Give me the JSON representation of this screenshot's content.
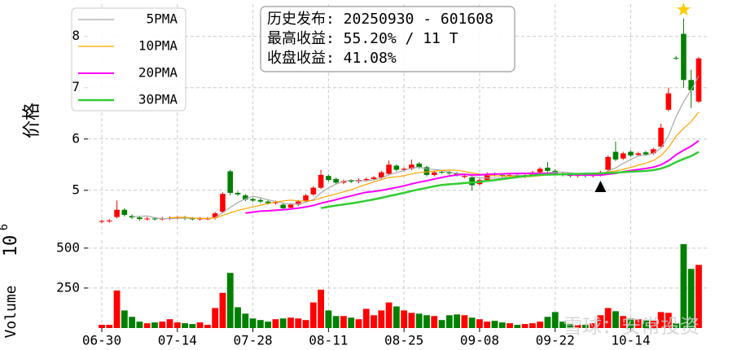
{
  "chart_data": {
    "type": "candlestick",
    "ylabel": "价格",
    "volume_label": "Volume",
    "offset_text": {
      "base": "10",
      "exponent": "6"
    },
    "info_lines": [
      "历史发布: 20250930 - 601608",
      "最高收益: 55.20% / 11 T",
      "收盘收益: 41.08%"
    ],
    "watermark": "雪球：安常投资",
    "categories": [
      "06-30",
      null,
      null,
      null,
      null,
      null,
      null,
      null,
      null,
      null,
      "07-14",
      null,
      null,
      null,
      null,
      null,
      null,
      null,
      null,
      null,
      "07-28",
      null,
      null,
      null,
      null,
      null,
      null,
      null,
      null,
      null,
      "08-11",
      null,
      null,
      null,
      null,
      null,
      null,
      null,
      null,
      null,
      "08-25",
      null,
      null,
      null,
      null,
      null,
      null,
      null,
      null,
      null,
      "09-08",
      null,
      null,
      null,
      null,
      null,
      null,
      null,
      null,
      null,
      "09-22",
      null,
      null,
      null,
      null,
      null,
      null,
      null,
      null,
      null,
      "10-14",
      null,
      null,
      null,
      null,
      null,
      null,
      null,
      null,
      null
    ],
    "open": [
      4.39,
      4.4,
      4.48,
      4.62,
      4.5,
      4.47,
      4.44,
      4.45,
      4.44,
      4.45,
      4.46,
      4.47,
      4.45,
      4.44,
      4.45,
      4.46,
      4.58,
      5.37,
      4.95,
      4.9,
      4.83,
      4.81,
      4.78,
      4.75,
      4.72,
      4.66,
      4.72,
      4.8,
      4.92,
      5.05,
      5.28,
      5.22,
      5.15,
      5.19,
      5.17,
      5.2,
      5.22,
      5.25,
      5.32,
      5.48,
      5.4,
      5.42,
      5.52,
      5.45,
      5.3,
      5.36,
      5.35,
      5.33,
      5.26,
      5.25,
      5.12,
      5.2,
      5.32,
      5.3,
      5.28,
      5.3,
      5.27,
      5.3,
      5.35,
      5.44,
      5.38,
      5.32,
      5.31,
      5.28,
      5.3,
      5.28,
      5.3,
      5.4,
      5.75,
      5.62,
      5.75,
      5.69,
      5.74,
      5.72,
      5.85,
      6.57,
      7.58,
      8.05,
      7.15,
      6.73
    ],
    "high": [
      4.43,
      4.44,
      4.8,
      4.65,
      4.53,
      4.5,
      4.48,
      4.48,
      4.48,
      4.49,
      4.5,
      4.5,
      4.48,
      4.48,
      4.48,
      4.58,
      4.96,
      5.4,
      4.98,
      4.93,
      4.86,
      4.84,
      4.81,
      4.8,
      4.75,
      4.75,
      4.81,
      4.93,
      5.08,
      5.4,
      5.31,
      5.25,
      5.21,
      5.22,
      5.23,
      5.25,
      5.28,
      5.38,
      5.58,
      5.51,
      5.45,
      5.6,
      5.55,
      5.48,
      5.38,
      5.39,
      5.38,
      5.36,
      5.31,
      5.28,
      5.23,
      5.35,
      5.35,
      5.33,
      5.33,
      5.33,
      5.33,
      5.38,
      5.45,
      5.55,
      5.41,
      5.35,
      5.34,
      5.33,
      5.33,
      5.33,
      5.38,
      5.68,
      5.95,
      5.75,
      5.78,
      5.75,
      5.77,
      5.83,
      6.3,
      7.0,
      7.62,
      8.35,
      7.35,
      7.6
    ],
    "low": [
      4.36,
      4.37,
      4.45,
      4.49,
      4.44,
      4.41,
      4.41,
      4.41,
      4.41,
      4.42,
      4.43,
      4.42,
      4.41,
      4.41,
      4.42,
      4.43,
      4.55,
      4.9,
      4.89,
      4.79,
      4.77,
      4.75,
      4.72,
      4.72,
      4.62,
      4.63,
      4.69,
      4.77,
      4.89,
      5.02,
      5.17,
      5.12,
      5.12,
      5.14,
      5.14,
      5.17,
      5.19,
      5.22,
      5.29,
      5.37,
      5.37,
      5.39,
      5.42,
      5.27,
      5.27,
      5.32,
      5.3,
      5.27,
      5.23,
      5.0,
      5.09,
      5.17,
      5.27,
      5.25,
      5.25,
      5.24,
      5.24,
      5.27,
      5.32,
      5.35,
      5.29,
      5.27,
      5.25,
      5.25,
      5.25,
      5.25,
      5.27,
      5.37,
      5.57,
      5.59,
      5.65,
      5.66,
      5.67,
      5.69,
      5.82,
      6.54,
      7.54,
      7.0,
      6.6,
      6.7
    ],
    "close": [
      4.4,
      4.41,
      4.62,
      4.52,
      4.47,
      4.44,
      4.45,
      4.44,
      4.45,
      4.46,
      4.47,
      4.45,
      4.44,
      4.45,
      4.45,
      4.55,
      4.93,
      4.95,
      4.92,
      4.82,
      4.8,
      4.78,
      4.75,
      4.77,
      4.65,
      4.72,
      4.78,
      4.9,
      5.05,
      5.3,
      5.2,
      5.15,
      5.18,
      5.17,
      5.2,
      5.22,
      5.25,
      5.35,
      5.5,
      5.4,
      5.42,
      5.5,
      5.45,
      5.3,
      5.35,
      5.35,
      5.33,
      5.3,
      5.28,
      5.1,
      5.2,
      5.32,
      5.3,
      5.28,
      5.3,
      5.27,
      5.3,
      5.35,
      5.42,
      5.38,
      5.32,
      5.3,
      5.28,
      5.3,
      5.28,
      5.3,
      5.35,
      5.65,
      5.6,
      5.72,
      5.68,
      5.72,
      5.7,
      5.8,
      6.22,
      6.89,
      7.57,
      7.15,
      6.95,
      7.57
    ],
    "volume": [
      20,
      20,
      235,
      110,
      70,
      40,
      30,
      35,
      40,
      55,
      35,
      30,
      25,
      35,
      20,
      125,
      220,
      345,
      130,
      90,
      60,
      50,
      40,
      55,
      60,
      65,
      60,
      50,
      160,
      240,
      110,
      75,
      75,
      65,
      55,
      120,
      80,
      110,
      160,
      135,
      110,
      95,
      90,
      80,
      75,
      50,
      80,
      85,
      80,
      65,
      55,
      40,
      45,
      35,
      30,
      20,
      25,
      30,
      40,
      70,
      100,
      40,
      25,
      20,
      20,
      30,
      80,
      125,
      105,
      75,
      60,
      55,
      50,
      45,
      100,
      95,
      30,
      525,
      370,
      395
    ],
    "up_color": "#ff0000",
    "down_color": "#008000",
    "series": [
      {
        "name": "5PMA",
        "color": "#a9a9a9",
        "width": 1.2,
        "values": [
          null,
          null,
          null,
          null,
          4.484,
          4.492,
          4.5,
          4.464,
          4.45,
          4.448,
          4.454,
          4.454,
          4.454,
          4.454,
          4.452,
          4.468,
          4.564,
          4.666,
          4.76,
          4.834,
          4.884,
          4.854,
          4.814,
          4.784,
          4.75,
          4.734,
          4.734,
          4.764,
          4.82,
          4.95,
          5.046,
          5.12,
          5.176,
          5.2,
          5.18,
          5.184,
          5.204,
          5.238,
          5.304,
          5.344,
          5.384,
          5.434,
          5.454,
          5.414,
          5.404,
          5.39,
          5.356,
          5.326,
          5.322,
          5.272,
          5.242,
          5.24,
          5.24,
          5.24,
          5.28,
          5.294,
          5.29,
          5.3,
          5.328,
          5.344,
          5.354,
          5.354,
          5.34,
          5.316,
          5.296,
          5.292,
          5.302,
          5.376,
          5.436,
          5.524,
          5.6,
          5.674,
          5.684,
          5.724,
          5.824,
          6.066,
          6.436,
          6.726,
          6.956,
          7.226
        ]
      },
      {
        "name": "10PMA",
        "color": "#ffa500",
        "width": 1.2,
        "values": [
          null,
          null,
          null,
          null,
          null,
          null,
          null,
          null,
          null,
          4.466,
          4.473,
          4.477,
          4.459,
          4.452,
          4.45,
          4.461,
          4.509,
          4.56,
          4.607,
          4.643,
          4.676,
          4.709,
          4.74,
          4.772,
          4.792,
          4.809,
          4.794,
          4.789,
          4.802,
          4.85,
          4.89,
          4.927,
          4.97,
          5.01,
          5.065,
          5.115,
          5.162,
          5.207,
          5.252,
          5.262,
          5.284,
          5.319,
          5.346,
          5.359,
          5.374,
          5.387,
          5.395,
          5.39,
          5.368,
          5.338,
          5.316,
          5.298,
          5.283,
          5.281,
          5.276,
          5.268,
          5.265,
          5.27,
          5.284,
          5.312,
          5.324,
          5.322,
          5.32,
          5.322,
          5.32,
          5.323,
          5.328,
          5.358,
          5.376,
          5.41,
          5.446,
          5.488,
          5.53,
          5.58,
          5.674,
          5.833,
          6.055,
          6.205,
          6.34,
          6.525
        ]
      },
      {
        "name": "20PMA",
        "color": "#ff00ff",
        "width": 2,
        "values": [
          null,
          null,
          null,
          null,
          null,
          null,
          null,
          null,
          null,
          null,
          null,
          null,
          null,
          null,
          null,
          null,
          null,
          null,
          null,
          4.555,
          4.575,
          4.593,
          4.6,
          4.612,
          4.621,
          4.635,
          4.652,
          4.675,
          4.705,
          4.747,
          4.783,
          4.818,
          4.855,
          4.891,
          4.929,
          4.962,
          4.978,
          4.998,
          5.027,
          5.056,
          5.087,
          5.123,
          5.158,
          5.185,
          5.22,
          5.251,
          5.279,
          5.299,
          5.31,
          5.3,
          5.3,
          5.309,
          5.315,
          5.32,
          5.325,
          5.328,
          5.33,
          5.33,
          5.326,
          5.325,
          5.32,
          5.31,
          5.302,
          5.302,
          5.298,
          5.296,
          5.297,
          5.314,
          5.33,
          5.361,
          5.385,
          5.405,
          5.425,
          5.451,
          5.497,
          5.578,
          5.692,
          5.782,
          5.858,
          5.968
        ]
      },
      {
        "name": "30PMA",
        "color": "#32cd32",
        "width": 2.5,
        "values": [
          null,
          null,
          null,
          null,
          null,
          null,
          null,
          null,
          null,
          null,
          null,
          null,
          null,
          null,
          null,
          null,
          null,
          null,
          null,
          null,
          null,
          null,
          null,
          null,
          null,
          null,
          null,
          null,
          null,
          4.653,
          4.68,
          4.704,
          4.723,
          4.745,
          4.769,
          4.795,
          4.822,
          4.852,
          4.887,
          4.918,
          4.95,
          4.985,
          5.019,
          5.047,
          5.077,
          5.104,
          5.117,
          5.129,
          5.141,
          5.15,
          5.163,
          5.182,
          5.2,
          5.217,
          5.238,
          5.257,
          5.274,
          5.289,
          5.301,
          5.304,
          5.308,
          5.313,
          5.317,
          5.321,
          5.323,
          5.326,
          5.33,
          5.339,
          5.343,
          5.353,
          5.362,
          5.369,
          5.378,
          5.394,
          5.423,
          5.475,
          5.55,
          5.611,
          5.667,
          5.749
        ]
      }
    ],
    "markers": [
      {
        "index": 66,
        "value": 5.06,
        "symbol": "triangle",
        "color": "#000000"
      },
      {
        "index": 77,
        "value": 8.52,
        "symbol": "star",
        "color": "#ffcc00"
      }
    ],
    "ylim": [
      4.14,
      8.63
    ],
    "yticks": [
      5,
      6,
      7,
      8
    ],
    "volume_ylim": [
      0,
      550
    ],
    "volume_yticks": [
      250,
      500
    ],
    "grid": true,
    "legend": "upper left"
  }
}
